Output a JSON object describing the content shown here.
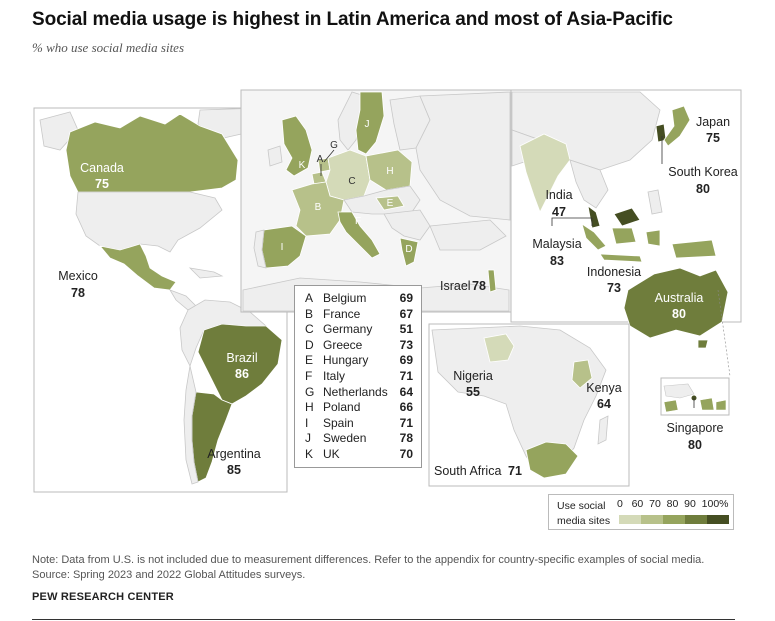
{
  "title": "Social media usage is highest in Latin America and most of Asia-Pacific",
  "subtitle": "% who use social media sites",
  "colors": {
    "bin_0_60": "#d4dab8",
    "bin_60_70": "#b7c18a",
    "bin_70_80": "#95a45d",
    "bin_80_90": "#6f7d3c",
    "bin_90_100": "#454e22",
    "no_data": "#eeeeee",
    "border": "#c8c8c8"
  },
  "countries": {
    "canada": {
      "name": "Canada",
      "value": "75"
    },
    "mexico": {
      "name": "Mexico",
      "value": "78"
    },
    "brazil": {
      "name": "Brazil",
      "value": "86"
    },
    "argentina": {
      "name": "Argentina",
      "value": "85"
    },
    "israel": {
      "name": "Israel",
      "value": "78"
    },
    "india": {
      "name": "India",
      "value": "47"
    },
    "malaysia": {
      "name": "Malaysia",
      "value": "83"
    },
    "indonesia": {
      "name": "Indonesia",
      "value": "73"
    },
    "japan": {
      "name": "Japan",
      "value": "75"
    },
    "south_korea": {
      "name": "South Korea",
      "value": "80"
    },
    "australia": {
      "name": "Australia",
      "value": "80"
    },
    "nigeria": {
      "name": "Nigeria",
      "value": "55"
    },
    "kenya": {
      "name": "Kenya",
      "value": "64"
    },
    "south_africa": {
      "name": "South Africa",
      "value": "71"
    },
    "singapore": {
      "name": "Singapore",
      "value": "80"
    }
  },
  "europe_letters": {
    "a": "A",
    "b": "B",
    "c": "C",
    "d": "D",
    "e": "E",
    "f": "F",
    "g": "G",
    "h": "H",
    "i": "I",
    "j": "J",
    "k": "K"
  },
  "europe_key": [
    {
      "letter": "A",
      "name": "Belgium",
      "value": "69"
    },
    {
      "letter": "B",
      "name": "France",
      "value": "67"
    },
    {
      "letter": "C",
      "name": "Germany",
      "value": "51"
    },
    {
      "letter": "D",
      "name": "Greece",
      "value": "73"
    },
    {
      "letter": "E",
      "name": "Hungary",
      "value": "69"
    },
    {
      "letter": "F",
      "name": "Italy",
      "value": "71"
    },
    {
      "letter": "G",
      "name": "Netherlands",
      "value": "64"
    },
    {
      "letter": "H",
      "name": "Poland",
      "value": "66"
    },
    {
      "letter": "I",
      "name": "Spain",
      "value": "71"
    },
    {
      "letter": "J",
      "name": "Sweden",
      "value": "78"
    },
    {
      "letter": "K",
      "name": "UK",
      "value": "70"
    }
  ],
  "scale": {
    "caption_line1": "Use social",
    "caption_line2": "media sites",
    "ticks": "0   60  70  80  90  100%"
  },
  "note": "Note: Data from U.S. is not included due to measurement differences. Refer to the appendix for country-specific examples of social media.",
  "source": "Source: Spring 2023 and 2022 Global Attitudes surveys.",
  "brand": "PEW RESEARCH CENTER"
}
